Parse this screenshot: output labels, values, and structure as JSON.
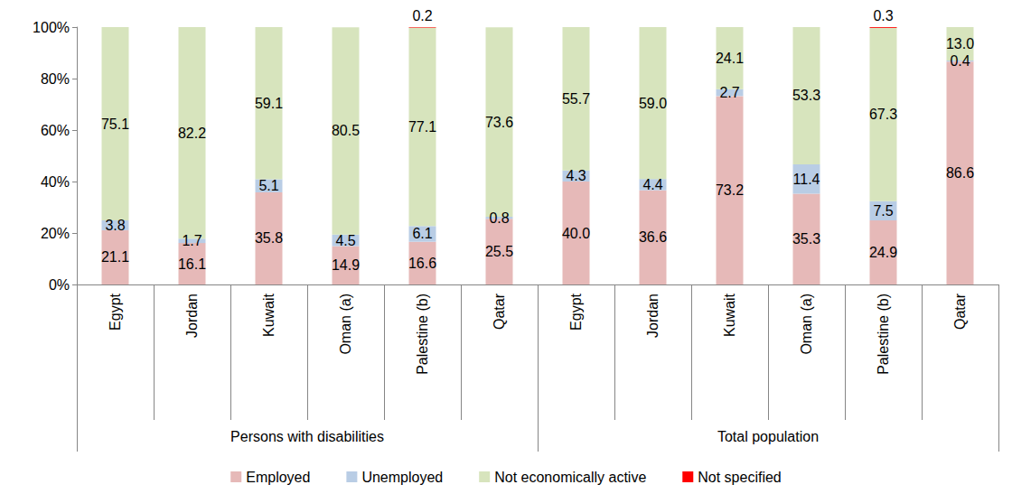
{
  "chart_data": {
    "type": "bar",
    "stacked": true,
    "data_labels": true,
    "grid": false,
    "legend": "bottom",
    "categories": [
      "Egypt",
      "Jordan",
      "Kuwait",
      "Oman (a)",
      "Palestine (b)",
      "Qatar",
      "Egypt",
      "Jordan",
      "Kuwait",
      "Oman (a)",
      "Palestine (b)",
      "Qatar"
    ],
    "category_groups": [
      {
        "label": "Persons with disabilities",
        "count": 6
      },
      {
        "label": "Total population",
        "count": 6
      }
    ],
    "ylim": [
      0,
      100
    ],
    "yticks": [
      {
        "value": 0,
        "label": "0%"
      },
      {
        "value": 20,
        "label": "20%"
      },
      {
        "value": 40,
        "label": "40%"
      },
      {
        "value": 60,
        "label": "60%"
      },
      {
        "value": 80,
        "label": "80%"
      },
      {
        "value": 100,
        "label": "100%"
      }
    ],
    "series": [
      {
        "name": "Employed",
        "color": "#e6b9b8",
        "values": [
          21.1,
          16.1,
          35.8,
          14.9,
          16.6,
          25.5,
          40.0,
          36.6,
          73.2,
          35.3,
          24.9,
          86.6
        ],
        "value_labels": [
          "21.1",
          "16.1",
          "35.8",
          "14.9",
          "16.6",
          "25.5",
          "40.0",
          "36.6",
          "73.2",
          "35.3",
          "24.9",
          "86.6"
        ]
      },
      {
        "name": "Unemployed",
        "color": "#b9cde5",
        "values": [
          3.8,
          1.7,
          5.1,
          4.5,
          6.1,
          0.8,
          4.3,
          4.4,
          2.7,
          11.4,
          7.5,
          0.4
        ],
        "value_labels": [
          "3.8",
          "1.7",
          "5.1",
          "4.5",
          "6.1",
          "0.8",
          "4.3",
          "4.4",
          "2.7",
          "11.4",
          "7.5",
          "0.4"
        ]
      },
      {
        "name": "Not economically active",
        "color": "#d7e4bd",
        "values": [
          75.1,
          82.2,
          59.1,
          80.5,
          77.1,
          73.6,
          55.7,
          59.0,
          24.1,
          53.3,
          67.3,
          13.0
        ],
        "value_labels": [
          "75.1",
          "82.2",
          "59.1",
          "80.5",
          "77.1",
          "73.6",
          "55.7",
          "59.0",
          "24.1",
          "53.3",
          "67.3",
          "13.0"
        ]
      },
      {
        "name": "Not specified",
        "color": "#ff0000",
        "values": [
          null,
          null,
          null,
          null,
          0.2,
          null,
          null,
          null,
          null,
          null,
          0.3,
          null
        ],
        "value_labels": [
          null,
          null,
          null,
          null,
          "0.2",
          null,
          null,
          null,
          null,
          null,
          "0.3",
          null
        ]
      }
    ]
  }
}
